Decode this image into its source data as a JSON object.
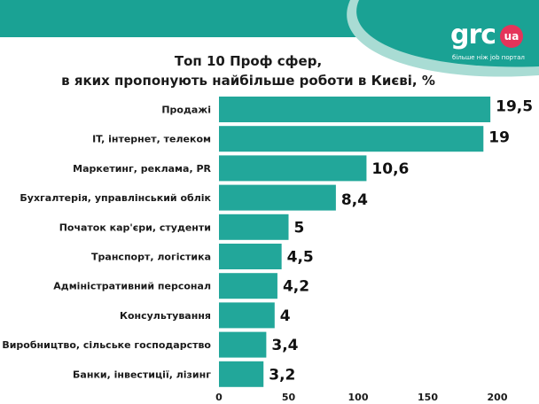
{
  "logo": {
    "text": "grc",
    "badge": "ua",
    "tagline": "більше ніж job портал"
  },
  "colors": {
    "bar": "#22a79a",
    "banner": "#1aa294",
    "banner_light": "#a9dcd4",
    "badge": "#e5345a"
  },
  "chart_data": {
    "type": "bar",
    "orientation": "horizontal",
    "title_lines": [
      "Топ 10 Проф сфер,",
      "в яких пропонують найбільше роботи в Києві, %"
    ],
    "categories": [
      "Продажі",
      "IT, інтернет, телеком",
      "Маркетинг, реклама, PR",
      "Бухгалтерія, управлінський облік",
      "Початок кар'єри, студенти",
      "Транспорт, логістика",
      "Адміністративний персонал",
      "Консультування",
      "Виробництво, сільське господарство",
      "Банки, інвестиції, лізинг"
    ],
    "values": [
      195,
      190,
      106,
      84,
      50,
      45,
      42,
      40,
      34,
      32
    ],
    "value_labels": [
      "19,5",
      "19",
      "10,6",
      "8,4",
      "5",
      "4,5",
      "4,2",
      "4",
      "3,4",
      "3,2"
    ],
    "xlim": [
      0,
      200
    ],
    "xticks": [
      0,
      50,
      100,
      150,
      200
    ],
    "grid": false,
    "legend": "none"
  }
}
